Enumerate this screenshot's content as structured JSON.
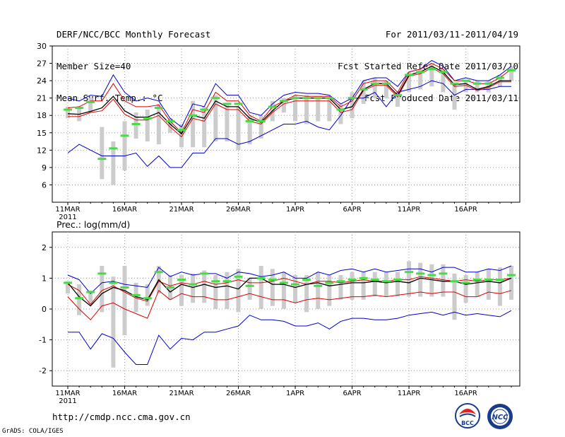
{
  "header": {
    "left": [
      "DERF/NCC/BCC Monthly Forecast",
      "Member Size=40",
      "Mean Surf. Temp.: °C"
    ],
    "right": [
      "For 2011/03/11-2011/04/19",
      "Fcst Started Refer Date 2011/03/10",
      "Fcst Produced Date 2011/03/11"
    ]
  },
  "footer": {
    "url": "http://cmdp.ncc.cma.gov.cn",
    "credit": "GrADS: COLA/IGES",
    "logo_bcc": "BCC",
    "logo_ncc": "NCC"
  },
  "colors": {
    "envelope": "#0000cc",
    "spread": "#dd0000",
    "mean": "#000000",
    "members": "#cccccc",
    "median": "#44dd44",
    "grid": "#999999"
  },
  "chart_data": [
    {
      "type": "line",
      "title": "Mean Surf. Temp.: °C",
      "x_ticks": [
        "11MAR",
        "16MAR",
        "21MAR",
        "26MAR",
        "1APR",
        "6APR",
        "11APR",
        "16APR"
      ],
      "x_year": "2011",
      "days": 40,
      "ylim": [
        3,
        30
      ],
      "y_ticks": [
        6,
        9,
        12,
        15,
        18,
        21,
        24,
        27,
        30
      ],
      "series": [
        {
          "name": "max",
          "values": [
            21.0,
            20.5,
            21.5,
            21.3,
            25.0,
            22.0,
            20.5,
            21.0,
            20.5,
            17.5,
            16.0,
            20.0,
            19.5,
            23.5,
            21.5,
            21.5,
            18.5,
            18.0,
            20.0,
            21.5,
            22.0,
            21.8,
            21.8,
            21.5,
            20.0,
            21.0,
            24.0,
            24.5,
            24.5,
            23.0,
            25.5,
            26.0,
            27.5,
            26.5,
            24.0,
            24.5,
            24.0,
            24.0,
            25.0,
            26.5
          ]
        },
        {
          "name": "upper",
          "values": [
            19.3,
            19.5,
            20.5,
            20.5,
            23.5,
            20.5,
            19.5,
            19.5,
            19.8,
            17.0,
            15.0,
            19.0,
            18.5,
            22.0,
            20.5,
            20.5,
            18.0,
            17.0,
            19.5,
            20.5,
            21.5,
            21.3,
            21.3,
            21.3,
            19.5,
            20.5,
            23.5,
            24.0,
            24.0,
            22.0,
            25.5,
            26.0,
            27.0,
            26.0,
            24.0,
            24.0,
            23.5,
            23.5,
            24.5,
            26.0
          ]
        },
        {
          "name": "mean",
          "values": [
            18.3,
            18.2,
            18.7,
            19.3,
            21.3,
            18.8,
            17.7,
            17.7,
            18.5,
            16.5,
            14.8,
            18.0,
            17.5,
            20.5,
            19.5,
            19.5,
            17.5,
            16.8,
            18.8,
            20.5,
            21.0,
            21.0,
            21.0,
            21.0,
            19.0,
            19.5,
            22.5,
            23.5,
            23.5,
            21.5,
            25.0,
            25.5,
            26.5,
            25.5,
            23.3,
            23.5,
            22.5,
            23.0,
            24.0,
            24.0
          ]
        },
        {
          "name": "lower",
          "values": [
            17.8,
            17.8,
            18.5,
            18.8,
            20.8,
            18.2,
            17.2,
            17.2,
            18.0,
            16.0,
            14.3,
            17.5,
            17.0,
            20.0,
            19.0,
            19.0,
            17.0,
            16.5,
            18.5,
            20.0,
            20.5,
            20.5,
            20.5,
            20.5,
            18.5,
            19.0,
            22.3,
            23.2,
            23.2,
            21.2,
            24.8,
            25.2,
            26.2,
            25.2,
            23.0,
            23.2,
            22.3,
            22.8,
            23.8,
            23.8
          ]
        },
        {
          "name": "min",
          "values": [
            11.5,
            13.0,
            12.0,
            11.0,
            11.0,
            11.0,
            11.5,
            9.2,
            11.0,
            9.0,
            9.0,
            11.5,
            11.5,
            14.0,
            14.0,
            13.0,
            13.5,
            14.5,
            15.5,
            16.5,
            16.5,
            17.0,
            16.0,
            15.5,
            18.0,
            21.0,
            21.0,
            22.0,
            19.5,
            22.0,
            22.5,
            23.0,
            24.0,
            23.5,
            21.5,
            22.5,
            22.5,
            22.5,
            23.0,
            23.0
          ]
        },
        {
          "name": "median",
          "values": [
            19.0,
            19.3,
            20.3,
            10.5,
            12.3,
            14.5,
            16.5,
            17.5,
            19.3,
            17.0,
            15.5,
            18.0,
            19.0,
            21.0,
            20.0,
            20.0,
            17.0,
            17.0,
            19.5,
            20.5,
            21.0,
            21.0,
            21.0,
            21.0,
            19.0,
            21.0,
            22.5,
            23.5,
            23.5,
            21.5,
            25.0,
            25.5,
            26.0,
            25.5,
            23.5,
            24.0,
            23.5,
            23.5,
            24.5,
            25.8
          ]
        }
      ],
      "boxes": [
        [
          17.5,
          19.5
        ],
        [
          17.0,
          19.5
        ],
        [
          18.5,
          21.0
        ],
        [
          7.0,
          16.0
        ],
        [
          6.0,
          13.5
        ],
        [
          8.5,
          17.0
        ],
        [
          14.0,
          18.5
        ],
        [
          13.5,
          19.0
        ],
        [
          13.0,
          20.0
        ],
        [
          15.0,
          17.5
        ],
        [
          12.5,
          16.5
        ],
        [
          12.5,
          20.5
        ],
        [
          12.5,
          19.5
        ],
        [
          13.5,
          21.5
        ],
        [
          13.5,
          20.0
        ],
        [
          12.0,
          19.5
        ],
        [
          13.0,
          18.0
        ],
        [
          14.0,
          18.0
        ],
        [
          17.0,
          20.5
        ],
        [
          18.5,
          21.0
        ],
        [
          17.0,
          21.5
        ],
        [
          16.5,
          21.5
        ],
        [
          17.0,
          21.0
        ],
        [
          17.0,
          21.0
        ],
        [
          16.5,
          20.0
        ],
        [
          17.5,
          22.0
        ],
        [
          20.0,
          24.0
        ],
        [
          21.0,
          24.5
        ],
        [
          21.0,
          24.0
        ],
        [
          19.5,
          22.0
        ],
        [
          22.0,
          25.5
        ],
        [
          22.5,
          26.0
        ],
        [
          23.0,
          27.0
        ],
        [
          22.0,
          26.0
        ],
        [
          19.0,
          23.5
        ],
        [
          22.0,
          24.0
        ],
        [
          22.0,
          24.0
        ],
        [
          22.0,
          24.0
        ],
        [
          23.0,
          25.0
        ],
        [
          24.0,
          26.5
        ]
      ]
    },
    {
      "type": "line",
      "title": "Prec.: log(mm/d)",
      "x_ticks": [
        "11MAR",
        "16MAR",
        "21MAR",
        "26MAR",
        "1APR",
        "6APR",
        "11APR",
        "16APR"
      ],
      "x_year": "2011",
      "days": 40,
      "ylim": [
        -2.5,
        2.5
      ],
      "y_ticks": [
        -2,
        -1,
        0,
        1,
        2
      ],
      "series": [
        {
          "name": "max",
          "values": [
            1.1,
            0.95,
            0.5,
            0.85,
            0.9,
            0.8,
            0.75,
            0.7,
            1.35,
            1.05,
            1.2,
            1.1,
            1.15,
            1.15,
            1.0,
            1.2,
            1.15,
            1.05,
            1.1,
            1.2,
            1.0,
            1.0,
            1.2,
            1.1,
            1.25,
            1.3,
            1.2,
            1.3,
            1.2,
            1.25,
            1.3,
            1.3,
            1.2,
            1.35,
            1.35,
            1.2,
            1.2,
            1.3,
            1.25,
            1.4
          ]
        },
        {
          "name": "upper",
          "values": [
            0.8,
            0.6,
            0.15,
            0.6,
            0.75,
            0.55,
            0.35,
            0.25,
            0.9,
            0.75,
            0.85,
            0.8,
            0.9,
            0.8,
            0.85,
            0.95,
            0.85,
            0.85,
            0.9,
            1.0,
            0.9,
            0.8,
            0.9,
            0.9,
            0.85,
            0.9,
            0.95,
            0.9,
            0.9,
            0.95,
            0.95,
            1.05,
            1.0,
            0.95,
            0.9,
            0.95,
            0.9,
            0.95,
            0.95,
            1.0
          ]
        },
        {
          "name": "mean",
          "values": [
            0.85,
            0.4,
            0.1,
            0.5,
            0.7,
            0.6,
            0.4,
            0.3,
            0.95,
            0.55,
            0.8,
            0.7,
            0.8,
            0.7,
            0.75,
            0.65,
            1.0,
            1.0,
            0.8,
            0.8,
            0.7,
            0.8,
            0.85,
            0.75,
            0.8,
            0.85,
            0.85,
            0.9,
            0.85,
            0.9,
            0.85,
            1.0,
            0.95,
            0.9,
            0.9,
            0.8,
            0.85,
            0.9,
            0.85,
            1.0
          ]
        },
        {
          "name": "lower",
          "values": [
            0.4,
            0.0,
            -0.35,
            0.1,
            0.2,
            0.0,
            -0.15,
            -0.3,
            0.6,
            0.3,
            0.5,
            0.4,
            0.4,
            0.3,
            0.3,
            0.4,
            0.5,
            0.4,
            0.3,
            0.3,
            0.2,
            0.3,
            0.35,
            0.3,
            0.35,
            0.4,
            0.4,
            0.45,
            0.4,
            0.45,
            0.5,
            0.55,
            0.5,
            0.55,
            0.55,
            0.4,
            0.4,
            0.55,
            0.5,
            0.6
          ]
        },
        {
          "name": "min",
          "values": [
            -0.75,
            -0.75,
            -1.3,
            -0.8,
            -0.95,
            -1.4,
            -1.8,
            -1.8,
            -0.85,
            -1.3,
            -0.95,
            -1.0,
            -0.75,
            -0.75,
            -0.65,
            -0.55,
            -0.2,
            -0.35,
            -0.35,
            -0.4,
            -0.55,
            -0.55,
            -0.45,
            -0.65,
            -0.4,
            -0.3,
            -0.3,
            -0.35,
            -0.35,
            -0.3,
            -0.2,
            -0.15,
            -0.1,
            -0.2,
            -0.1,
            -0.2,
            -0.15,
            -0.2,
            -0.25,
            -0.05
          ]
        },
        {
          "name": "median",
          "values": [
            0.85,
            0.35,
            0.55,
            1.15,
            0.85,
            0.7,
            0.45,
            0.35,
            1.2,
            0.7,
            0.95,
            0.8,
            1.15,
            0.9,
            0.9,
            1.05,
            0.75,
            1.0,
            0.95,
            0.85,
            0.8,
            0.95,
            0.75,
            0.85,
            0.9,
            0.95,
            1.0,
            0.95,
            0.9,
            0.95,
            1.2,
            1.15,
            1.1,
            1.15,
            0.9,
            0.85,
            0.95,
            0.95,
            0.95,
            1.1
          ]
        }
      ],
      "boxes": [
        [
          0.5,
          0.9
        ],
        [
          -0.2,
          0.8
        ],
        [
          0.15,
          0.6
        ],
        [
          -0.1,
          1.4
        ],
        [
          -1.9,
          1.05
        ],
        [
          -0.85,
          1.4
        ],
        [
          -0.1,
          0.85
        ],
        [
          0.1,
          0.8
        ],
        [
          0.5,
          1.4
        ],
        [
          0.3,
          1.1
        ],
        [
          0.1,
          1.1
        ],
        [
          0.2,
          1.15
        ],
        [
          0.2,
          1.25
        ],
        [
          0.0,
          1.1
        ],
        [
          0.0,
          1.2
        ],
        [
          -0.1,
          1.3
        ],
        [
          0.3,
          1.0
        ],
        [
          0.0,
          1.4
        ],
        [
          0.1,
          1.3
        ],
        [
          0.0,
          1.2
        ],
        [
          0.2,
          1.1
        ],
        [
          -0.1,
          1.1
        ],
        [
          0.0,
          1.2
        ],
        [
          0.1,
          1.1
        ],
        [
          0.3,
          1.1
        ],
        [
          0.3,
          1.2
        ],
        [
          0.3,
          1.2
        ],
        [
          0.4,
          1.2
        ],
        [
          0.4,
          1.2
        ],
        [
          0.4,
          1.2
        ],
        [
          0.4,
          1.55
        ],
        [
          0.4,
          1.5
        ],
        [
          0.4,
          1.45
        ],
        [
          0.4,
          1.45
        ],
        [
          -0.35,
          1.15
        ],
        [
          0.2,
          1.1
        ],
        [
          0.4,
          1.2
        ],
        [
          0.3,
          1.3
        ],
        [
          0.1,
          1.35
        ],
        [
          0.3,
          1.4
        ]
      ]
    }
  ]
}
